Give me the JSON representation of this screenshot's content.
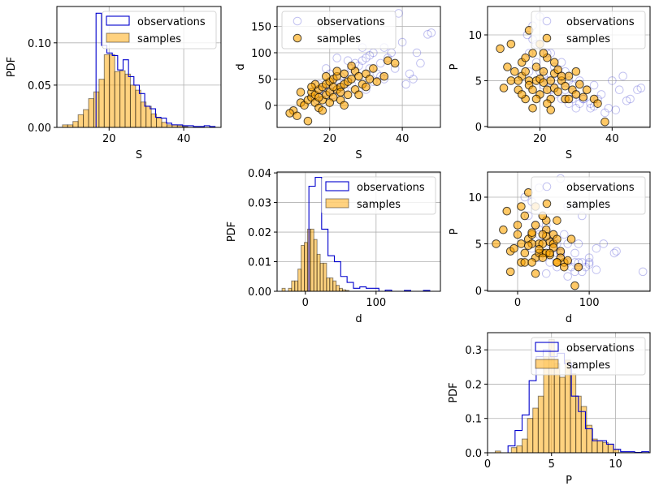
{
  "chart_data": {
    "type": "pairplot",
    "variables": [
      "S",
      "d",
      "P"
    ],
    "colors": {
      "observations": "#0000cd",
      "samples": "#ffa500",
      "grid": "#b0b0b0"
    },
    "legend_labels": [
      "observations",
      "samples"
    ],
    "points": {
      "columns": [
        "S",
        "d",
        "P"
      ],
      "observations": [
        [
          17,
          15,
          8
        ],
        [
          18,
          20,
          9.5
        ],
        [
          19,
          25,
          7
        ],
        [
          20,
          30,
          6
        ],
        [
          21,
          40,
          5.5
        ],
        [
          22,
          45,
          5
        ],
        [
          23,
          55,
          4
        ],
        [
          24,
          60,
          3.5
        ],
        [
          25,
          50,
          6
        ],
        [
          26,
          70,
          3
        ],
        [
          27,
          80,
          4
        ],
        [
          28,
          75,
          2.5
        ],
        [
          29,
          85,
          3
        ],
        [
          30,
          90,
          2
        ],
        [
          31,
          95,
          2.5
        ],
        [
          32,
          100,
          3
        ],
        [
          33,
          60,
          4
        ],
        [
          34,
          80,
          2
        ],
        [
          35,
          110,
          2.2
        ],
        [
          36,
          90,
          3
        ],
        [
          38,
          70,
          1.5
        ],
        [
          40,
          120,
          5
        ],
        [
          42,
          60,
          4
        ],
        [
          45,
          80,
          3
        ],
        [
          47,
          135,
          4
        ],
        [
          48,
          138,
          4.2
        ],
        [
          39,
          175,
          2
        ],
        [
          43,
          50,
          5.5
        ],
        [
          16.5,
          10,
          10
        ],
        [
          18,
          30,
          11
        ],
        [
          20,
          60,
          12
        ],
        [
          22,
          90,
          8
        ],
        [
          24,
          30,
          6.5
        ],
        [
          26,
          40,
          7
        ],
        [
          28,
          55,
          5
        ],
        [
          30,
          30,
          3.5
        ],
        [
          32,
          45,
          3
        ],
        [
          34,
          55,
          2.5
        ],
        [
          37,
          100,
          3.5
        ],
        [
          41,
          40,
          1.8
        ],
        [
          44,
          100,
          2.8
        ],
        [
          17,
          40,
          6
        ],
        [
          19,
          70,
          9
        ],
        [
          21,
          20,
          4.5
        ],
        [
          23,
          35,
          8
        ],
        [
          25,
          85,
          5
        ],
        [
          27,
          65,
          6
        ],
        [
          29,
          110,
          4.5
        ],
        [
          31,
          70,
          5
        ],
        [
          35,
          50,
          4.5
        ]
      ],
      "samples": [
        [
          10,
          -10,
          4.2
        ],
        [
          12,
          5,
          5
        ],
        [
          13,
          0,
          6
        ],
        [
          14,
          10,
          4
        ],
        [
          15,
          15,
          5.5
        ],
        [
          15,
          25,
          7
        ],
        [
          16,
          5,
          3
        ],
        [
          16,
          20,
          6
        ],
        [
          17,
          30,
          5
        ],
        [
          17,
          -5,
          4.5
        ],
        [
          18,
          10,
          8
        ],
        [
          18,
          35,
          4
        ],
        [
          19,
          20,
          5
        ],
        [
          19,
          40,
          6.5
        ],
        [
          20,
          25,
          3.5
        ],
        [
          20,
          45,
          5.2
        ],
        [
          21,
          15,
          4.8
        ],
        [
          21,
          50,
          6
        ],
        [
          22,
          30,
          4
        ],
        [
          22,
          55,
          7.5
        ],
        [
          23,
          35,
          5
        ],
        [
          23,
          10,
          3
        ],
        [
          24,
          40,
          5.8
        ],
        [
          24,
          60,
          4.2
        ],
        [
          25,
          45,
          3.8
        ],
        [
          25,
          20,
          6.2
        ],
        [
          26,
          50,
          5
        ],
        [
          27,
          30,
          4.4
        ],
        [
          27,
          65,
          3
        ],
        [
          28,
          55,
          5.5
        ],
        [
          29,
          40,
          4
        ],
        [
          30,
          60,
          3.5
        ],
        [
          31,
          50,
          4.6
        ],
        [
          32,
          70,
          3.2
        ],
        [
          33,
          45,
          4
        ],
        [
          35,
          55,
          3
        ],
        [
          36,
          85,
          2.5
        ],
        [
          38,
          80,
          0.5
        ],
        [
          11,
          -20,
          6.5
        ],
        [
          9,
          -15,
          8.5
        ],
        [
          14,
          -30,
          5
        ],
        [
          12,
          25,
          9
        ],
        [
          16,
          40,
          7.5
        ],
        [
          18,
          -10,
          2
        ],
        [
          20,
          5,
          9
        ],
        [
          22,
          65,
          2.5
        ],
        [
          24,
          0,
          7
        ],
        [
          26,
          75,
          5.5
        ],
        [
          19,
          55,
          3
        ],
        [
          21,
          35,
          8
        ],
        [
          23,
          25,
          1.8
        ],
        [
          17,
          15,
          10.5
        ],
        [
          30,
          35,
          6
        ],
        [
          28,
          20,
          3
        ],
        [
          15,
          35,
          3.5
        ]
      ]
    },
    "panels": [
      {
        "kind": "histogram",
        "x": "S",
        "xlabel": "S",
        "ylabel": "PDF",
        "xlim": [
          6,
          50
        ],
        "ylim": [
          0,
          0.143
        ],
        "xticks": [
          20,
          40
        ],
        "xtick_labels": [
          "20",
          "40"
        ],
        "yticks": [
          0,
          0.05,
          0.1
        ],
        "ytick_labels": [
          "0.00",
          "0.05",
          "0.10"
        ],
        "grid": true,
        "legend": "upper right",
        "observations": {
          "bin_start": 16.5,
          "bin_width": 1.45,
          "values": [
            0.135,
            0.097,
            0.088,
            0.085,
            0.068,
            0.08,
            0.06,
            0.05,
            0.04,
            0.025,
            0.022,
            0.012,
            0.011,
            0.005,
            0.003,
            0.003,
            0.002,
            0.002,
            0.001,
            0.001,
            0.002,
            0.001
          ]
        },
        "samples": {
          "bin_start": 7.5,
          "bin_width": 1.4,
          "values": [
            0.003,
            0.003,
            0.007,
            0.015,
            0.021,
            0.034,
            0.042,
            0.057,
            0.086,
            0.086,
            0.066,
            0.067,
            0.063,
            0.05,
            0.044,
            0.03,
            0.025,
            0.016,
            0.011,
            0.006,
            0.003,
            0.003,
            0.002,
            0.001
          ]
        }
      },
      {
        "kind": "scatter",
        "x": "S",
        "y": "d",
        "xlabel": "S",
        "ylabel": "d",
        "xlim": [
          5.5,
          50.5
        ],
        "ylim": [
          -42,
          188
        ],
        "xticks": [
          20,
          40
        ],
        "xtick_labels": [
          "20",
          "40"
        ],
        "yticks": [
          0,
          50,
          100,
          150
        ],
        "ytick_labels": [
          "0",
          "50",
          "100",
          "150"
        ],
        "grid": true,
        "legend": "upper left"
      },
      {
        "kind": "scatter",
        "x": "S",
        "y": "P",
        "xlabel": "S",
        "ylabel": "P",
        "xlim": [
          5.5,
          50.5
        ],
        "ylim": [
          -0.1,
          13.1
        ],
        "xticks": [
          20,
          40
        ],
        "xtick_labels": [
          "20",
          "40"
        ],
        "yticks": [
          0,
          5,
          10
        ],
        "ytick_labels": [
          "0",
          "5",
          "10"
        ],
        "grid": true,
        "legend": "upper right"
      },
      {
        "kind": "histogram",
        "x": "d",
        "xlabel": "d",
        "ylabel": "PDF",
        "xlim": [
          -40,
          191
        ],
        "ylim": [
          0,
          0.0403
        ],
        "xticks": [
          0,
          100
        ],
        "xtick_labels": [
          "0",
          "100"
        ],
        "yticks": [
          0,
          0.01,
          0.02,
          0.03,
          0.04
        ],
        "ytick_labels": [
          "0.00",
          "0.01",
          "0.02",
          "0.03",
          "0.04"
        ],
        "grid": true,
        "legend": "upper right",
        "observations": {
          "bin_start": 5,
          "bin_width": 9,
          "values": [
            0.0355,
            0.0385,
            0.021,
            0.012,
            0.01,
            0.005,
            0.003,
            0.001,
            0.0015,
            0.001,
            0.001,
            0,
            0.0004,
            0,
            0,
            0.0003,
            0,
            0,
            0.0003
          ]
        },
        "samples": {
          "bin_start": -33,
          "bin_width": 4.5,
          "values": [
            0.001,
            0,
            0.001,
            0.0035,
            0.0035,
            0.0075,
            0.0155,
            0.0165,
            0.021,
            0.021,
            0.0175,
            0.0125,
            0.0095,
            0.0095,
            0.0045,
            0.0045,
            0.0035,
            0.002,
            0.001,
            0.0005,
            0.0003
          ]
        }
      },
      {
        "kind": "scatter",
        "x": "d",
        "y": "P",
        "xlabel": "d",
        "ylabel": "P",
        "xlim": [
          -42,
          185
        ],
        "ylim": [
          -0.1,
          12.7
        ],
        "xticks": [
          0,
          100
        ],
        "xtick_labels": [
          "0",
          "100"
        ],
        "yticks": [
          0,
          5,
          10
        ],
        "ytick_labels": [
          "0",
          "5",
          "10"
        ],
        "grid": true,
        "legend": "upper right"
      },
      {
        "kind": "histogram",
        "x": "P",
        "xlabel": "P",
        "ylabel": "PDF",
        "xlim": [
          0,
          12.7
        ],
        "ylim": [
          0,
          0.35
        ],
        "xticks": [
          0,
          5,
          10
        ],
        "xtick_labels": [
          "0",
          "5",
          "10"
        ],
        "yticks": [
          0,
          0.1,
          0.2,
          0.3
        ],
        "ytick_labels": [
          "0.0",
          "0.1",
          "0.2",
          "0.3"
        ],
        "grid": true,
        "legend": "upper right",
        "observations": {
          "bin_start": 1.6,
          "bin_width": 0.55,
          "values": [
            0.02,
            0.065,
            0.11,
            0.21,
            0.28,
            0.3,
            0.28,
            0.29,
            0.26,
            0.165,
            0.12,
            0.07,
            0.035,
            0.035,
            0.025,
            0.01,
            0.003,
            0.003,
            0.001,
            0.003
          ]
        },
        "samples": {
          "bin_start": 0.6,
          "bin_width": 0.42,
          "values": [
            0.005,
            0,
            0,
            0.015,
            0.02,
            0.04,
            0.1,
            0.13,
            0.165,
            0.28,
            0.33,
            0.26,
            0.22,
            0.27,
            0.23,
            0.165,
            0.135,
            0.08,
            0.04,
            0.035,
            0.03,
            0.025,
            0.01
          ]
        }
      }
    ]
  }
}
